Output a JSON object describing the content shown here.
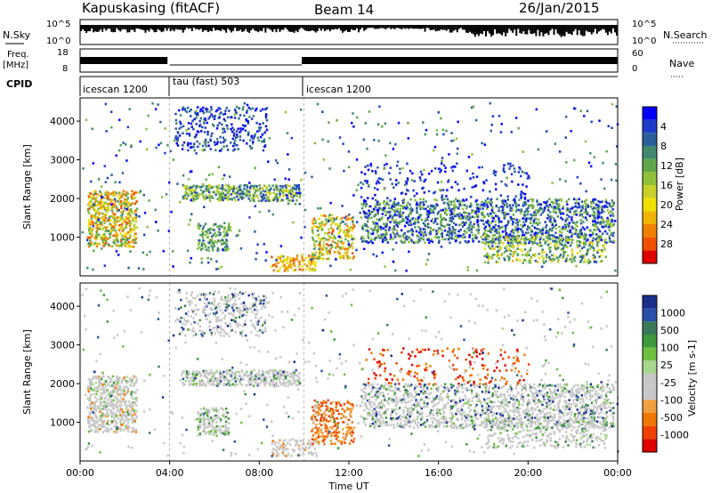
{
  "header": {
    "station": "Kapuskasing (fitACF)",
    "beam": "Beam 14",
    "date": "26/Jan/2015"
  },
  "strips": {
    "nsky": {
      "label": "N.Sky",
      "ticks": [
        "10^5",
        "10^0"
      ]
    },
    "nsearch": {
      "label": "N.Search",
      "ticks": [
        "10^5",
        "10^0"
      ]
    },
    "freq": {
      "label_top": "Freq.",
      "label_unit": "[MHz]",
      "ticks": [
        "18",
        "8"
      ]
    },
    "nave": {
      "label": "Nave",
      "ticks": [
        "60",
        "0"
      ]
    },
    "cpid": {
      "label": "CPID",
      "segments": [
        "icescan 1200",
        "tau (fast) 503",
        "icescan 1200"
      ]
    }
  },
  "chart_data": [
    {
      "type": "heatmap",
      "name": "Power",
      "ylabel": "Slant Range [km]",
      "colorbar_label": "Power [dB]",
      "yticks": [
        "1000",
        "2000",
        "3000",
        "4000"
      ],
      "colorbar_ticks": [
        "4",
        "8",
        "12",
        "16",
        "20",
        "24",
        "28"
      ],
      "colors": [
        "#0000ff",
        "#1f3cc8",
        "#2a5f9c",
        "#3f8a6e",
        "#5fa84a",
        "#8fc03a",
        "#c8d02a",
        "#f0e000",
        "#f0b400",
        "#f08000",
        "#f05000",
        "#e00000"
      ]
    },
    {
      "type": "heatmap",
      "name": "Velocity",
      "ylabel": "Slant Range [km]",
      "colorbar_label": "Velocity [m s-1]",
      "yticks": [
        "1000",
        "2000",
        "3000",
        "4000"
      ],
      "colorbar_ticks": [
        "1000",
        "500",
        "100",
        "25",
        "-25",
        "-100",
        "-500",
        "-1000"
      ],
      "colors": [
        "#1c2f8a",
        "#2a4fa8",
        "#3a7a5a",
        "#3e9a3a",
        "#70c040",
        "#a8d890",
        "#c8c8c8",
        "#c8c8c8",
        "#f0a040",
        "#f07800",
        "#f04000",
        "#e00000"
      ]
    }
  ],
  "xaxis": {
    "label": "Time UT",
    "ticks": [
      "00:00",
      "04:00",
      "08:00",
      "12:00",
      "16:00",
      "20:00",
      "00:00"
    ]
  }
}
